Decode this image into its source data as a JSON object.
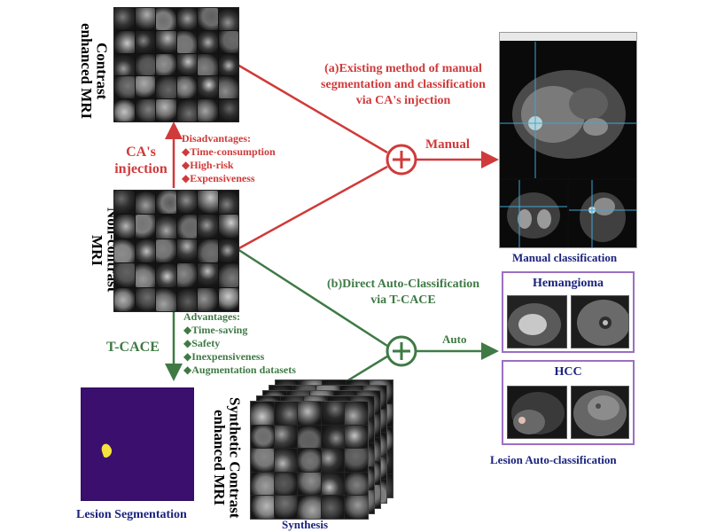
{
  "labels": {
    "contrast_mri": "Contrast enhanced MRI",
    "noncontrast_mri": "Non-contrast MRI",
    "synthetic_mri": "Synthetic Contrast enhanced MRI",
    "ca_injection": "CA's injection",
    "tcace": "T-CACE",
    "existing_method": [
      "(a)Existing method of manual",
      "segmentation and classification",
      "via CA's injection"
    ],
    "direct_auto": [
      "(b)Direct  Auto-Classification",
      "via T-CACE"
    ],
    "manual": "Manual",
    "auto": "Auto",
    "manual_classification": "Manual classification",
    "lesion_auto_classification": "Lesion Auto-classification",
    "lesion_segmentation": "Lesion Segmentation",
    "synthesis": "Synthesis",
    "hemangioma": "Hemangioma",
    "hcc": "HCC"
  },
  "disadvantages": {
    "title": "Disadvantages:",
    "items": [
      "Time-consumption",
      "High-risk",
      "Expensiveness"
    ]
  },
  "advantages": {
    "title": "Advantages:",
    "items": [
      "Time-saving",
      "Safety",
      "Inexpensiveness",
      "Augmentation datasets"
    ]
  },
  "colors": {
    "red": "#d03a3a",
    "green": "#3f7a45",
    "navy": "#1a237e",
    "purple_box": "#9b6fc2",
    "seg_bg": "#3b0f6e",
    "lesion": "#f5e23a"
  }
}
